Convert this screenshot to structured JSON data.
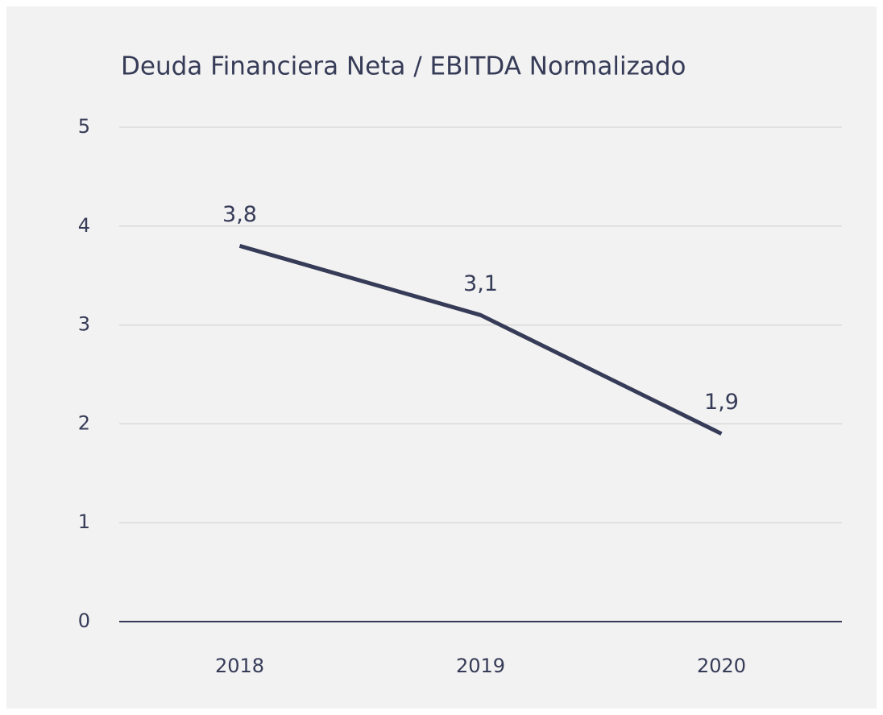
{
  "chart_data": {
    "type": "line",
    "title": "Deuda Financiera Neta / EBITDA Normalizado",
    "categories": [
      "2018",
      "2019",
      "2020"
    ],
    "values": [
      3.8,
      3.1,
      1.9
    ],
    "value_labels": [
      "3,8",
      "3,1",
      "1,9"
    ],
    "color": "#363b57",
    "ylim": [
      0,
      5
    ],
    "yticks": [
      0,
      1,
      2,
      3,
      4,
      5
    ],
    "grid": true
  }
}
